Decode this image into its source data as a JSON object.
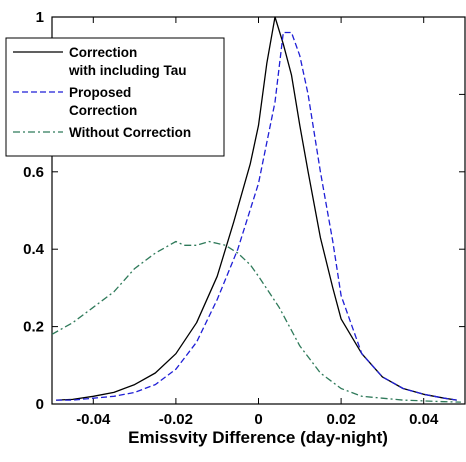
{
  "chart_data": {
    "type": "line",
    "title": "",
    "xlabel": "Emissvity Difference (day-night)",
    "ylabel": "",
    "xlim": [
      -0.05,
      0.05
    ],
    "ylim": [
      0,
      1
    ],
    "xticks": [
      -0.04,
      -0.02,
      0,
      0.02,
      0.04
    ],
    "xtick_labels": [
      "-0.04",
      "-0.02",
      "0",
      "0.02",
      "0.04"
    ],
    "yticks": [
      0,
      0.2,
      0.4,
      0.6,
      0.8,
      1
    ],
    "ytick_labels": [
      "0",
      "0.2",
      "0.4",
      "0.6",
      "",
      "1"
    ],
    "grid": false,
    "legend_position": "top-left",
    "series": [
      {
        "name": "Correction with including Tau",
        "name_lines": [
          "Correction",
          "with including Tau"
        ],
        "color": "#000000",
        "dash": "solid",
        "x": [
          -0.049,
          -0.045,
          -0.04,
          -0.035,
          -0.03,
          -0.025,
          -0.02,
          -0.015,
          -0.01,
          -0.006,
          -0.002,
          0,
          0.002,
          0.004,
          0.006,
          0.008,
          0.01,
          0.012,
          0.015,
          0.018,
          0.02,
          0.025,
          0.03,
          0.035,
          0.04,
          0.045,
          0.048
        ],
        "y": [
          0.01,
          0.012,
          0.02,
          0.03,
          0.05,
          0.08,
          0.13,
          0.21,
          0.33,
          0.47,
          0.62,
          0.72,
          0.88,
          1.0,
          0.93,
          0.85,
          0.72,
          0.6,
          0.43,
          0.3,
          0.22,
          0.13,
          0.07,
          0.04,
          0.025,
          0.015,
          0.01
        ]
      },
      {
        "name": "Proposed Correction",
        "name_lines": [
          "Proposed",
          "Correction"
        ],
        "color": "#1f1fd6",
        "dash": "dashed",
        "x": [
          -0.049,
          -0.045,
          -0.04,
          -0.035,
          -0.03,
          -0.025,
          -0.02,
          -0.015,
          -0.01,
          -0.005,
          0,
          0.004,
          0.006,
          0.008,
          0.01,
          0.012,
          0.015,
          0.018,
          0.02,
          0.025,
          0.03,
          0.035,
          0.04,
          0.045,
          0.048
        ],
        "y": [
          0.01,
          0.01,
          0.015,
          0.02,
          0.03,
          0.05,
          0.09,
          0.16,
          0.27,
          0.4,
          0.57,
          0.78,
          0.96,
          0.96,
          0.9,
          0.8,
          0.6,
          0.42,
          0.28,
          0.13,
          0.07,
          0.04,
          0.025,
          0.015,
          0.01
        ]
      },
      {
        "name": "Without Correction",
        "name_lines": [
          "Without Correction"
        ],
        "color": "#2f7a5a",
        "dash": "dashdot",
        "x": [
          -0.05,
          -0.045,
          -0.04,
          -0.035,
          -0.03,
          -0.025,
          -0.02,
          -0.018,
          -0.015,
          -0.012,
          -0.01,
          -0.008,
          -0.005,
          -0.002,
          0,
          0.005,
          0.01,
          0.015,
          0.02,
          0.025,
          0.03,
          0.035,
          0.04,
          0.045,
          0.049
        ],
        "y": [
          0.18,
          0.21,
          0.25,
          0.29,
          0.35,
          0.39,
          0.42,
          0.41,
          0.41,
          0.42,
          0.415,
          0.41,
          0.39,
          0.36,
          0.33,
          0.25,
          0.15,
          0.08,
          0.04,
          0.02,
          0.015,
          0.01,
          0.008,
          0.006,
          0.005
        ]
      }
    ]
  }
}
